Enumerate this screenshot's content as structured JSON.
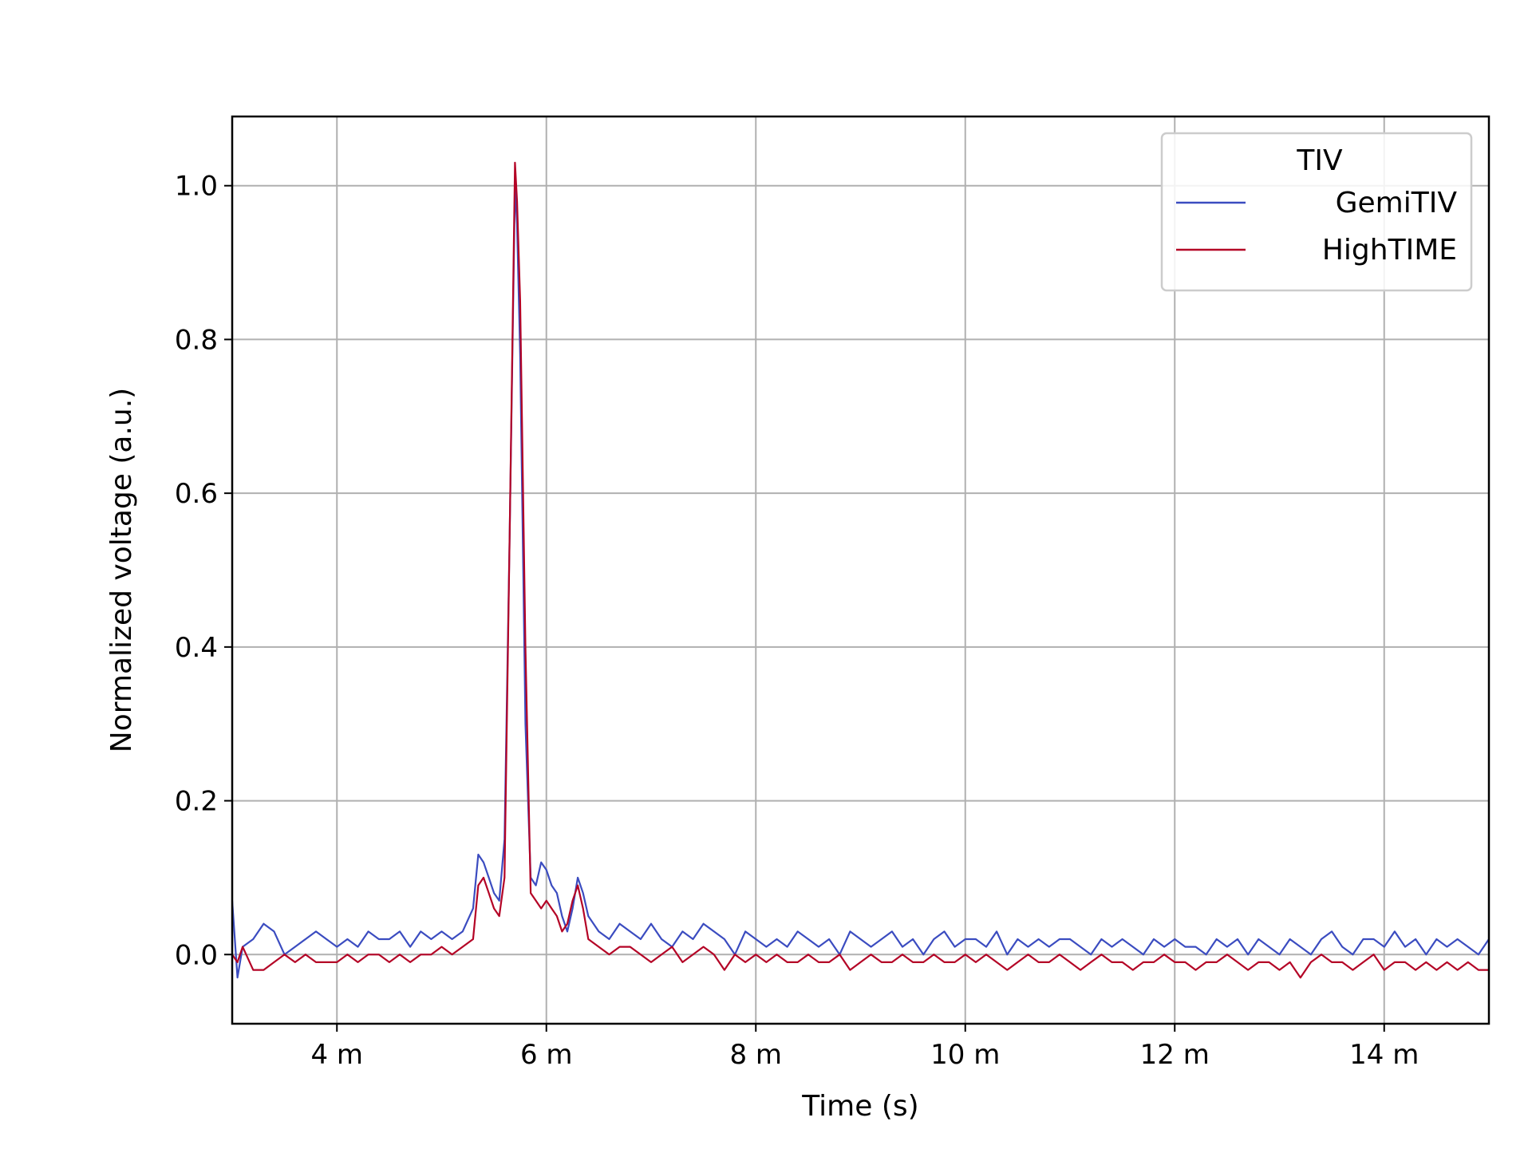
{
  "chart_data": {
    "type": "line",
    "xlabel": "Time (s)",
    "ylabel": "Normalized voltage (a.u.)",
    "xlim": [
      0.003,
      0.015
    ],
    "ylim": [
      -0.09,
      1.09
    ],
    "grid": true,
    "x_ticks": [
      {
        "value": 0.004,
        "label": "4 m"
      },
      {
        "value": 0.006,
        "label": "6 m"
      },
      {
        "value": 0.008,
        "label": "8 m"
      },
      {
        "value": 0.01,
        "label": "10 m"
      },
      {
        "value": 0.012,
        "label": "12 m"
      },
      {
        "value": 0.014,
        "label": "14 m"
      }
    ],
    "y_ticks": [
      {
        "value": 0.0,
        "label": "0.0"
      },
      {
        "value": 0.2,
        "label": "0.2"
      },
      {
        "value": 0.4,
        "label": "0.4"
      },
      {
        "value": 0.6,
        "label": "0.6"
      },
      {
        "value": 0.8,
        "label": "0.8"
      },
      {
        "value": 1.0,
        "label": "1.0"
      }
    ],
    "legend": {
      "title": "TIV",
      "position": "upper-right"
    },
    "series": [
      {
        "name": "GemiTIV",
        "color": "#3b4cc0",
        "x": [
          0.003,
          0.00305,
          0.0031,
          0.0032,
          0.0033,
          0.0034,
          0.0035,
          0.0036,
          0.0037,
          0.0038,
          0.0039,
          0.004,
          0.0041,
          0.0042,
          0.0043,
          0.0044,
          0.0045,
          0.0046,
          0.0047,
          0.0048,
          0.0049,
          0.005,
          0.0051,
          0.0052,
          0.0053,
          0.00535,
          0.0054,
          0.00545,
          0.0055,
          0.00555,
          0.0056,
          0.00565,
          0.0057,
          0.00572,
          0.00575,
          0.0058,
          0.00585,
          0.0059,
          0.00595,
          0.006,
          0.00605,
          0.0061,
          0.00615,
          0.0062,
          0.00625,
          0.0063,
          0.00635,
          0.0064,
          0.0065,
          0.0066,
          0.0067,
          0.0068,
          0.0069,
          0.007,
          0.0071,
          0.0072,
          0.0073,
          0.0074,
          0.0075,
          0.0076,
          0.0077,
          0.0078,
          0.0079,
          0.008,
          0.0081,
          0.0082,
          0.0083,
          0.0084,
          0.0085,
          0.0086,
          0.0087,
          0.0088,
          0.0089,
          0.009,
          0.0091,
          0.0092,
          0.0093,
          0.0094,
          0.0095,
          0.0096,
          0.0097,
          0.0098,
          0.0099,
          0.01,
          0.0101,
          0.0102,
          0.0103,
          0.0104,
          0.0105,
          0.0106,
          0.0107,
          0.0108,
          0.0109,
          0.011,
          0.0111,
          0.0112,
          0.0113,
          0.0114,
          0.0115,
          0.0116,
          0.0117,
          0.0118,
          0.0119,
          0.012,
          0.0121,
          0.0122,
          0.0123,
          0.0124,
          0.0125,
          0.0126,
          0.0127,
          0.0128,
          0.0129,
          0.013,
          0.0131,
          0.0132,
          0.0133,
          0.0134,
          0.0135,
          0.0136,
          0.0137,
          0.0138,
          0.0139,
          0.014,
          0.0141,
          0.0142,
          0.0143,
          0.0144,
          0.0145,
          0.0146,
          0.0147,
          0.0148,
          0.0149,
          0.015
        ],
        "y": [
          0.07,
          -0.03,
          0.01,
          0.02,
          0.04,
          0.03,
          0.0,
          0.01,
          0.02,
          0.03,
          0.02,
          0.01,
          0.02,
          0.01,
          0.03,
          0.02,
          0.02,
          0.03,
          0.01,
          0.03,
          0.02,
          0.03,
          0.02,
          0.03,
          0.06,
          0.13,
          0.12,
          0.1,
          0.08,
          0.07,
          0.15,
          0.55,
          1.0,
          0.95,
          0.78,
          0.3,
          0.1,
          0.09,
          0.12,
          0.11,
          0.09,
          0.08,
          0.05,
          0.03,
          0.06,
          0.1,
          0.08,
          0.05,
          0.03,
          0.02,
          0.04,
          0.03,
          0.02,
          0.04,
          0.02,
          0.01,
          0.03,
          0.02,
          0.04,
          0.03,
          0.02,
          0.0,
          0.03,
          0.02,
          0.01,
          0.02,
          0.01,
          0.03,
          0.02,
          0.01,
          0.02,
          0.0,
          0.03,
          0.02,
          0.01,
          0.02,
          0.03,
          0.01,
          0.02,
          0.0,
          0.02,
          0.03,
          0.01,
          0.02,
          0.02,
          0.01,
          0.03,
          0.0,
          0.02,
          0.01,
          0.02,
          0.01,
          0.02,
          0.02,
          0.01,
          0.0,
          0.02,
          0.01,
          0.02,
          0.01,
          0.0,
          0.02,
          0.01,
          0.02,
          0.01,
          0.01,
          0.0,
          0.02,
          0.01,
          0.02,
          0.0,
          0.02,
          0.01,
          0.0,
          0.02,
          0.01,
          0.0,
          0.02,
          0.03,
          0.01,
          0.0,
          0.02,
          0.02,
          0.01,
          0.03,
          0.01,
          0.02,
          0.0,
          0.02,
          0.01,
          0.02,
          0.01,
          0.0,
          0.02
        ]
      },
      {
        "name": "HighTIME",
        "color": "#b40426",
        "x": [
          0.003,
          0.00305,
          0.0031,
          0.0032,
          0.0033,
          0.0034,
          0.0035,
          0.0036,
          0.0037,
          0.0038,
          0.0039,
          0.004,
          0.0041,
          0.0042,
          0.0043,
          0.0044,
          0.0045,
          0.0046,
          0.0047,
          0.0048,
          0.0049,
          0.005,
          0.0051,
          0.0052,
          0.0053,
          0.00535,
          0.0054,
          0.00545,
          0.0055,
          0.00555,
          0.0056,
          0.00565,
          0.0057,
          0.00572,
          0.00575,
          0.0058,
          0.00585,
          0.0059,
          0.00595,
          0.006,
          0.00605,
          0.0061,
          0.00615,
          0.0062,
          0.00625,
          0.0063,
          0.00635,
          0.0064,
          0.0065,
          0.0066,
          0.0067,
          0.0068,
          0.0069,
          0.007,
          0.0071,
          0.0072,
          0.0073,
          0.0074,
          0.0075,
          0.0076,
          0.0077,
          0.0078,
          0.0079,
          0.008,
          0.0081,
          0.0082,
          0.0083,
          0.0084,
          0.0085,
          0.0086,
          0.0087,
          0.0088,
          0.0089,
          0.009,
          0.0091,
          0.0092,
          0.0093,
          0.0094,
          0.0095,
          0.0096,
          0.0097,
          0.0098,
          0.0099,
          0.01,
          0.0101,
          0.0102,
          0.0103,
          0.0104,
          0.0105,
          0.0106,
          0.0107,
          0.0108,
          0.0109,
          0.011,
          0.0111,
          0.0112,
          0.0113,
          0.0114,
          0.0115,
          0.0116,
          0.0117,
          0.0118,
          0.0119,
          0.012,
          0.0121,
          0.0122,
          0.0123,
          0.0124,
          0.0125,
          0.0126,
          0.0127,
          0.0128,
          0.0129,
          0.013,
          0.0131,
          0.0132,
          0.0133,
          0.0134,
          0.0135,
          0.0136,
          0.0137,
          0.0138,
          0.0139,
          0.014,
          0.0141,
          0.0142,
          0.0143,
          0.0144,
          0.0145,
          0.0146,
          0.0147,
          0.0148,
          0.0149,
          0.015
        ],
        "y": [
          0.0,
          -0.01,
          0.01,
          -0.02,
          -0.02,
          -0.01,
          0.0,
          -0.01,
          0.0,
          -0.01,
          -0.01,
          -0.01,
          0.0,
          -0.01,
          0.0,
          0.0,
          -0.01,
          0.0,
          -0.01,
          0.0,
          0.0,
          0.01,
          0.0,
          0.01,
          0.02,
          0.09,
          0.1,
          0.08,
          0.06,
          0.05,
          0.1,
          0.55,
          1.03,
          0.98,
          0.85,
          0.4,
          0.08,
          0.07,
          0.06,
          0.07,
          0.06,
          0.05,
          0.03,
          0.04,
          0.07,
          0.09,
          0.06,
          0.02,
          0.01,
          0.0,
          0.01,
          0.01,
          0.0,
          -0.01,
          0.0,
          0.01,
          -0.01,
          0.0,
          0.01,
          0.0,
          -0.02,
          0.0,
          -0.01,
          0.0,
          -0.01,
          0.0,
          -0.01,
          -0.01,
          0.0,
          -0.01,
          -0.01,
          0.0,
          -0.02,
          -0.01,
          0.0,
          -0.01,
          -0.01,
          0.0,
          -0.01,
          -0.01,
          0.0,
          -0.01,
          -0.01,
          0.0,
          -0.01,
          0.0,
          -0.01,
          -0.02,
          -0.01,
          0.0,
          -0.01,
          -0.01,
          0.0,
          -0.01,
          -0.02,
          -0.01,
          0.0,
          -0.01,
          -0.01,
          -0.02,
          -0.01,
          -0.01,
          0.0,
          -0.01,
          -0.01,
          -0.02,
          -0.01,
          -0.01,
          0.0,
          -0.01,
          -0.02,
          -0.01,
          -0.01,
          -0.02,
          -0.01,
          -0.03,
          -0.01,
          0.0,
          -0.01,
          -0.01,
          -0.02,
          -0.01,
          0.0,
          -0.02,
          -0.01,
          -0.01,
          -0.02,
          -0.01,
          -0.02,
          -0.01,
          -0.02,
          -0.01,
          -0.02,
          -0.02
        ]
      }
    ]
  }
}
